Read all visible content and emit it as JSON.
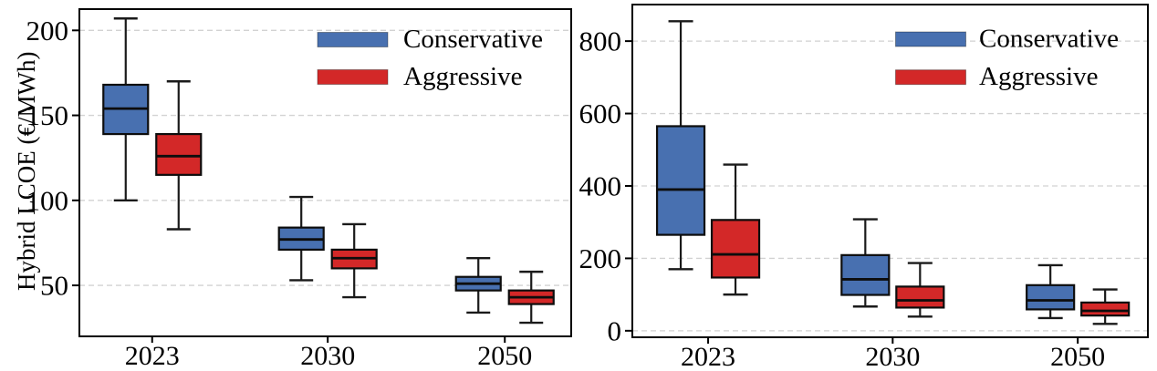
{
  "figure": {
    "left_y_axis_label": "Hybrid LCOE (€/MWh)"
  },
  "colors": {
    "conservative": "#4870B0",
    "aggressive": "#D32828",
    "box_edge": "#0d0d0d",
    "median_line": "#0d0d0d",
    "whisker": "#1a1a1a",
    "grid": "#d2d2d2",
    "axis": "#000000",
    "text": "#000000",
    "background": "#ffffff"
  },
  "legend": {
    "items": [
      {
        "label": "Conservative",
        "color_key": "conservative"
      },
      {
        "label": "Aggressive",
        "color_key": "aggressive"
      }
    ],
    "position": "upper-right",
    "frame": false
  },
  "chart_data": [
    {
      "type": "boxplot",
      "panel": "left",
      "title": "",
      "xlabel": "",
      "ylabel": "Hybrid LCOE (€/MWh)",
      "categories": [
        "2023",
        "2030",
        "2050"
      ],
      "yticks": [
        50,
        100,
        150,
        200
      ],
      "ylim": [
        20,
        212.5
      ],
      "grid": "horizontal-dashed",
      "legend": [
        "Conservative",
        "Aggressive"
      ],
      "legend_position": "upper-right",
      "series": [
        {
          "name": "Conservative",
          "color": "#4870B0",
          "boxes": [
            {
              "category": "2023",
              "whisker_low": 100,
              "q1": 139,
              "median": 154,
              "q3": 168,
              "whisker_high": 207
            },
            {
              "category": "2030",
              "whisker_low": 53,
              "q1": 71,
              "median": 77,
              "q3": 84,
              "whisker_high": 102
            },
            {
              "category": "2050",
              "whisker_low": 34,
              "q1": 47,
              "median": 51,
              "q3": 55,
              "whisker_high": 66
            }
          ]
        },
        {
          "name": "Aggressive",
          "color": "#D32828",
          "boxes": [
            {
              "category": "2023",
              "whisker_low": 83,
              "q1": 115,
              "median": 126,
              "q3": 139,
              "whisker_high": 170
            },
            {
              "category": "2030",
              "whisker_low": 43,
              "q1": 60,
              "median": 66,
              "q3": 71,
              "whisker_high": 86
            },
            {
              "category": "2050",
              "whisker_low": 28,
              "q1": 39,
              "median": 43,
              "q3": 47,
              "whisker_high": 58
            }
          ]
        }
      ]
    },
    {
      "type": "boxplot",
      "panel": "right",
      "title": "",
      "xlabel": "",
      "ylabel": "",
      "categories": [
        "2023",
        "2030",
        "2050"
      ],
      "yticks": [
        0,
        200,
        400,
        600,
        800
      ],
      "ylim": [
        -18,
        901
      ],
      "grid": "horizontal-dashed",
      "legend": [
        "Conservative",
        "Aggressive"
      ],
      "legend_position": "upper-right",
      "series": [
        {
          "name": "Conservative",
          "color": "#4870B0",
          "boxes": [
            {
              "category": "2023",
              "whisker_low": 170,
              "q1": 265,
              "median": 390,
              "q3": 565,
              "whisker_high": 855
            },
            {
              "category": "2030",
              "whisker_low": 67,
              "q1": 99,
              "median": 142,
              "q3": 209,
              "whisker_high": 308
            },
            {
              "category": "2050",
              "whisker_low": 35,
              "q1": 59,
              "median": 84,
              "q3": 126,
              "whisker_high": 181
            }
          ]
        },
        {
          "name": "Aggressive",
          "color": "#D32828",
          "boxes": [
            {
              "category": "2023",
              "whisker_low": 100,
              "q1": 147,
              "median": 211,
              "q3": 306,
              "whisker_high": 459
            },
            {
              "category": "2030",
              "whisker_low": 39,
              "q1": 64,
              "median": 84,
              "q3": 122,
              "whisker_high": 187
            },
            {
              "category": "2050",
              "whisker_low": 19,
              "q1": 42,
              "median": 55,
              "q3": 78,
              "whisker_high": 114
            }
          ]
        }
      ]
    }
  ]
}
